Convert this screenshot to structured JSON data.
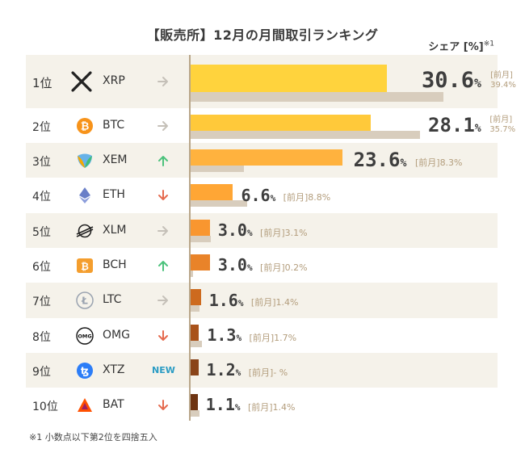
{
  "title": "【販売所】12月の月間取引ランキング",
  "unit_label": "シェア [%]",
  "unit_note": "※1",
  "footnote": "※1 小数点以下第2位を四捨五入",
  "prev_label": "[前月]",
  "chart_data": {
    "type": "bar",
    "orientation": "horizontal",
    "title": "【販売所】12月の月間取引ランキング",
    "xlabel": "シェア [%]",
    "categories": [
      "XRP",
      "BTC",
      "XEM",
      "ETH",
      "XLM",
      "BCH",
      "LTC",
      "OMG",
      "XTZ",
      "BAT"
    ],
    "series": [
      {
        "name": "12月",
        "values": [
          30.6,
          28.1,
          23.6,
          6.6,
          3.0,
          3.0,
          1.6,
          1.3,
          1.2,
          1.1
        ]
      },
      {
        "name": "前月",
        "values": [
          39.4,
          35.7,
          8.3,
          8.8,
          3.1,
          0.2,
          1.4,
          1.7,
          null,
          1.4
        ]
      }
    ],
    "xlim": [
      0,
      41.5
    ]
  },
  "rows": [
    {
      "rank": "1位",
      "symbol": "XRP",
      "icon": "xrp-icon",
      "trend": "flat",
      "value": "30.6",
      "value_unit": "%",
      "prev": "39.4%",
      "prev_stacked": true,
      "color": "#ffd33d"
    },
    {
      "rank": "2位",
      "symbol": "BTC",
      "icon": "btc-icon",
      "trend": "flat",
      "value": "28.1",
      "value_unit": "%",
      "prev": "35.7%",
      "prev_stacked": true,
      "color": "#ffc93a"
    },
    {
      "rank": "3位",
      "symbol": "XEM",
      "icon": "xem-icon",
      "trend": "up",
      "value": "23.6",
      "value_unit": "%",
      "prev": "8.3%",
      "prev_stacked": false,
      "color": "#ffb23e"
    },
    {
      "rank": "4位",
      "symbol": "ETH",
      "icon": "eth-icon",
      "trend": "down",
      "value": "6.6",
      "value_unit": "%",
      "prev": "8.8%",
      "prev_stacked": false,
      "color": "#ffa635"
    },
    {
      "rank": "5位",
      "symbol": "XLM",
      "icon": "xlm-icon",
      "trend": "flat",
      "value": "3.0",
      "value_unit": "%",
      "prev": "3.1%",
      "prev_stacked": false,
      "color": "#f9962f"
    },
    {
      "rank": "6位",
      "symbol": "BCH",
      "icon": "bch-icon",
      "trend": "up",
      "value": "3.0",
      "value_unit": "%",
      "prev": "0.2%",
      "prev_stacked": false,
      "color": "#e98329"
    },
    {
      "rank": "7位",
      "symbol": "LTC",
      "icon": "ltc-icon",
      "trend": "flat",
      "value": "1.6",
      "value_unit": "%",
      "prev": "1.4%",
      "prev_stacked": false,
      "color": "#cd6a1e"
    },
    {
      "rank": "8位",
      "symbol": "OMG",
      "icon": "omg-icon",
      "trend": "down",
      "value": "1.3",
      "value_unit": "%",
      "prev": "1.7%",
      "prev_stacked": false,
      "color": "#a9521a"
    },
    {
      "rank": "9位",
      "symbol": "XTZ",
      "icon": "xtz-icon",
      "trend": "new",
      "new_label": "NEW",
      "value": "1.2",
      "value_unit": "%",
      "prev": "- %",
      "prev_stacked": false,
      "color": "#8a4419"
    },
    {
      "rank": "10位",
      "symbol": "BAT",
      "icon": "bat-icon",
      "trend": "down",
      "value": "1.1",
      "value_unit": "%",
      "prev": "1.4%",
      "prev_stacked": false,
      "color": "#6e3412"
    }
  ],
  "colors": {
    "up": "#4cc27c",
    "down": "#e56a4e",
    "flat": "#c5c0b8",
    "prev_bar": "#d8cdbd",
    "axis": "#b9a68a",
    "new": "#2b9cc4"
  }
}
